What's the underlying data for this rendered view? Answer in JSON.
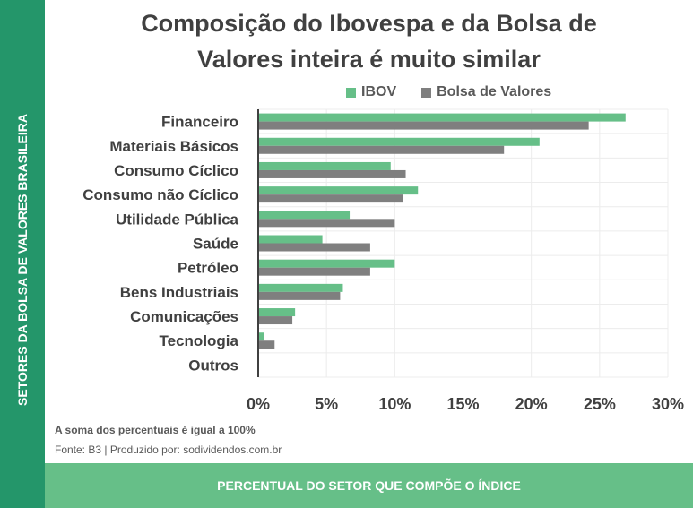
{
  "chart_data": {
    "type": "bar",
    "orientation": "horizontal",
    "title": "Composição do Ibovespa e da Bolsa de Valores inteira é muito similar",
    "title_lines": [
      "Composição do Ibovespa e da Bolsa de",
      "Valores inteira é muito similar"
    ],
    "ylabel": "SETORES DA BOLSA DE VALORES BRASILEIRA",
    "xlabel": "PERCENTUAL DO SETOR QUE COMPÕE O ÍNDICE",
    "categories": [
      "Financeiro",
      "Materiais Básicos",
      "Consumo Cíclico",
      "Consumo não Cíclico",
      "Utilidade Pública",
      "Saúde",
      "Petróleo",
      "Bens Industriais",
      "Comunicações",
      "Tecnologia",
      "Outros"
    ],
    "series": [
      {
        "name": "IBOV",
        "color": "#66bf88",
        "values": [
          26.9,
          20.6,
          9.7,
          11.7,
          6.7,
          4.7,
          10.0,
          6.2,
          2.7,
          0.4,
          0.05
        ]
      },
      {
        "name": "Bolsa de Valores",
        "color": "#7f7f7f",
        "values": [
          24.2,
          18.0,
          10.8,
          10.6,
          10.0,
          8.2,
          8.2,
          6.0,
          2.5,
          1.2,
          0.05
        ]
      }
    ],
    "xlim": [
      0,
      30
    ],
    "xticks": [
      "0%",
      "5%",
      "10%",
      "15%",
      "20%",
      "25%",
      "30%"
    ],
    "grid": true,
    "legend": "top"
  },
  "notes": {
    "sum": "A soma dos percentuais é igual a 100%",
    "source": "Fonte: B3 | Produzido por: sodividendos.com.br"
  }
}
